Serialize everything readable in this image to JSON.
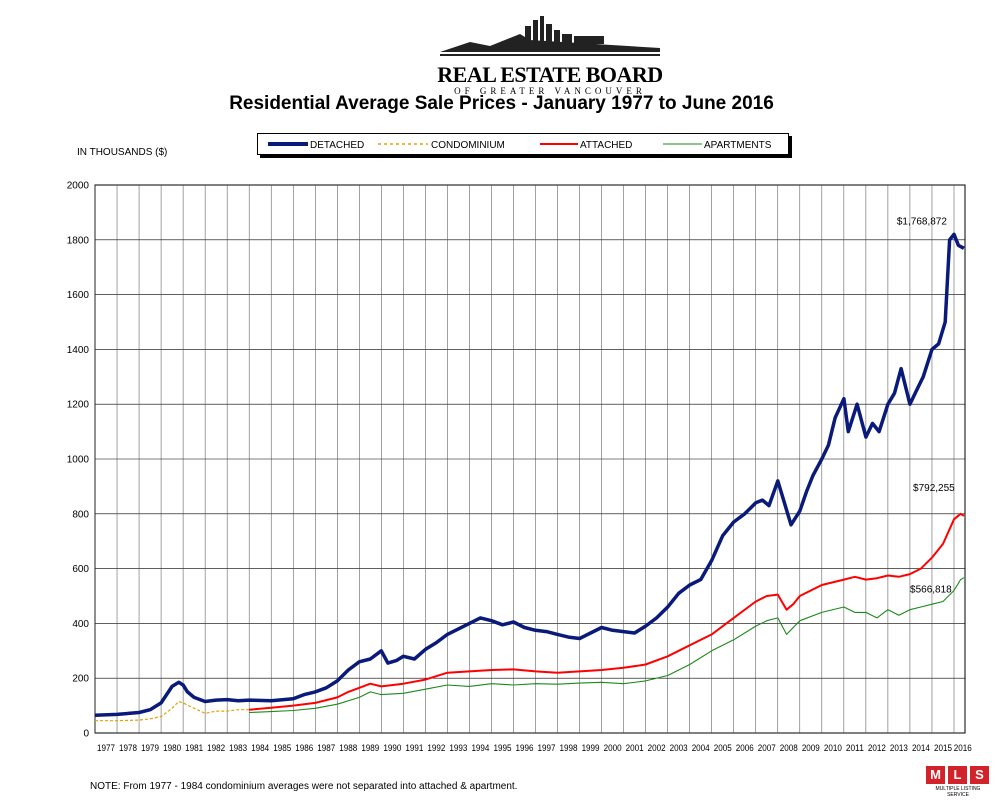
{
  "logo": {
    "name": "REAL ESTATE BOARD",
    "sub": "OF GREATER VANCOUVER"
  },
  "mls": {
    "letters": [
      "M",
      "L",
      "S"
    ],
    "tagline": "MULTIPLE LISTING SERVICE"
  },
  "units_label": "IN THOUSANDS ($)",
  "note": "NOTE:  From 1977 - 1984 condominium averages were not separated into attached & apartment.",
  "chart_data": {
    "type": "line",
    "title": "Residential Average Sale Prices  -  January 1977 to June 2016",
    "ylabel": "",
    "xlabel": "",
    "xlim": [
      1977.0,
      2016.5
    ],
    "ylim": [
      0,
      2000
    ],
    "yticks": [
      0,
      200,
      400,
      600,
      800,
      1000,
      1200,
      1400,
      1600,
      1800,
      2000
    ],
    "xtick_labels": [
      "1977",
      "1978",
      "1979",
      "1980",
      "1981",
      "1982",
      "1983",
      "1984",
      "1985",
      "1986",
      "1987",
      "1988",
      "1989",
      "1990",
      "1991",
      "1992",
      "1993",
      "1994",
      "1995",
      "1996",
      "1997",
      "1998",
      "1999",
      "2000",
      "2001",
      "2002",
      "2003",
      "2004",
      "2005",
      "2006",
      "2007",
      "2008",
      "2009",
      "2010",
      "2011",
      "2012",
      "2013",
      "2014",
      "2015",
      "2016"
    ],
    "grid": true,
    "legend": "top",
    "series": [
      {
        "name": "DETACHED",
        "color": "#0a1a7a",
        "style": "solid-thick",
        "x": [
          1977.0,
          1978.0,
          1979.0,
          1979.5,
          1980.0,
          1980.5,
          1980.8,
          1981.0,
          1981.2,
          1981.5,
          1982.0,
          1982.5,
          1983.0,
          1983.5,
          1984.0,
          1985.0,
          1986.0,
          1986.5,
          1987.0,
          1987.5,
          1988.0,
          1988.5,
          1989.0,
          1989.5,
          1990.0,
          1990.3,
          1990.7,
          1991.0,
          1991.5,
          1992.0,
          1992.5,
          1993.0,
          1993.5,
          1994.0,
          1994.5,
          1995.0,
          1995.5,
          1996.0,
          1996.5,
          1997.0,
          1997.5,
          1998.0,
          1998.5,
          1999.0,
          1999.5,
          2000.0,
          2000.5,
          2001.0,
          2001.5,
          2002.0,
          2002.5,
          2003.0,
          2003.5,
          2004.0,
          2004.5,
          2005.0,
          2005.5,
          2006.0,
          2006.5,
          2007.0,
          2007.3,
          2007.6,
          2008.0,
          2008.3,
          2008.6,
          2009.0,
          2009.3,
          2009.6,
          2010.0,
          2010.3,
          2010.6,
          2011.0,
          2011.2,
          2011.4,
          2011.6,
          2012.0,
          2012.3,
          2012.6,
          2013.0,
          2013.3,
          2013.6,
          2014.0,
          2014.3,
          2014.6,
          2015.0,
          2015.3,
          2015.6,
          2015.8,
          2016.0,
          2016.2,
          2016.45
        ],
        "values": [
          65,
          68,
          75,
          85,
          110,
          170,
          185,
          175,
          150,
          130,
          115,
          120,
          122,
          118,
          120,
          118,
          125,
          140,
          150,
          165,
          190,
          230,
          260,
          270,
          300,
          255,
          265,
          280,
          270,
          305,
          330,
          360,
          380,
          400,
          420,
          410,
          395,
          405,
          385,
          375,
          370,
          360,
          350,
          345,
          365,
          385,
          375,
          370,
          365,
          390,
          420,
          460,
          510,
          540,
          560,
          630,
          720,
          770,
          800,
          840,
          850,
          830,
          920,
          840,
          760,
          810,
          880,
          940,
          1000,
          1050,
          1150,
          1220,
          1100,
          1150,
          1200,
          1080,
          1130,
          1100,
          1200,
          1240,
          1330,
          1200,
          1250,
          1300,
          1400,
          1420,
          1500,
          1800,
          1820,
          1780,
          1768.872
        ]
      },
      {
        "name": "CONDOMINIUM",
        "color": "#e8a000",
        "style": "dashed",
        "x": [
          1977.0,
          1978.0,
          1979.0,
          1979.5,
          1980.0,
          1980.5,
          1980.8,
          1981.0,
          1981.5,
          1982.0,
          1982.5,
          1983.0,
          1983.5,
          1984.0
        ],
        "values": [
          45,
          45,
          47,
          52,
          60,
          90,
          115,
          110,
          90,
          72,
          80,
          80,
          85,
          85
        ]
      },
      {
        "name": "ATTACHED",
        "color": "#ff0000",
        "style": "solid",
        "x": [
          1984.0,
          1985.0,
          1986.0,
          1987.0,
          1988.0,
          1988.5,
          1989.0,
          1989.5,
          1990.0,
          1991.0,
          1992.0,
          1993.0,
          1994.0,
          1995.0,
          1996.0,
          1997.0,
          1998.0,
          1999.0,
          2000.0,
          2001.0,
          2002.0,
          2003.0,
          2004.0,
          2005.0,
          2006.0,
          2007.0,
          2007.5,
          2008.0,
          2008.4,
          2008.7,
          2009.0,
          2010.0,
          2011.0,
          2011.5,
          2012.0,
          2012.5,
          2013.0,
          2013.5,
          2014.0,
          2014.5,
          2015.0,
          2015.5,
          2016.0,
          2016.3,
          2016.45
        ],
        "values": [
          85,
          92,
          100,
          110,
          130,
          150,
          165,
          180,
          170,
          180,
          195,
          220,
          225,
          230,
          232,
          225,
          220,
          225,
          230,
          238,
          250,
          280,
          320,
          360,
          420,
          480,
          500,
          505,
          450,
          470,
          500,
          540,
          560,
          570,
          560,
          565,
          575,
          570,
          580,
          600,
          640,
          690,
          780,
          800,
          792.255
        ]
      },
      {
        "name": "APARTMENTS",
        "color": "#1a8a1a",
        "style": "solid-thin",
        "x": [
          1984.0,
          1985.0,
          1986.0,
          1987.0,
          1988.0,
          1989.0,
          1989.5,
          1990.0,
          1991.0,
          1992.0,
          1993.0,
          1994.0,
          1995.0,
          1996.0,
          1997.0,
          1998.0,
          1999.0,
          2000.0,
          2001.0,
          2002.0,
          2003.0,
          2004.0,
          2005.0,
          2006.0,
          2007.0,
          2007.5,
          2008.0,
          2008.4,
          2009.0,
          2010.0,
          2011.0,
          2011.5,
          2012.0,
          2012.5,
          2013.0,
          2013.5,
          2014.0,
          2014.5,
          2015.0,
          2015.5,
          2016.0,
          2016.3,
          2016.45
        ],
        "values": [
          75,
          78,
          82,
          90,
          105,
          130,
          150,
          140,
          145,
          160,
          175,
          170,
          180,
          175,
          180,
          178,
          182,
          185,
          180,
          190,
          210,
          250,
          300,
          340,
          390,
          410,
          420,
          360,
          410,
          440,
          460,
          440,
          440,
          420,
          450,
          430,
          450,
          460,
          470,
          480,
          520,
          560,
          566.818
        ]
      }
    ],
    "annotations": [
      {
        "text": "$1,768,872",
        "series": "DETACHED"
      },
      {
        "text": "$792,255",
        "series": "ATTACHED"
      },
      {
        "text": "$566,818",
        "series": "APARTMENTS"
      }
    ]
  }
}
